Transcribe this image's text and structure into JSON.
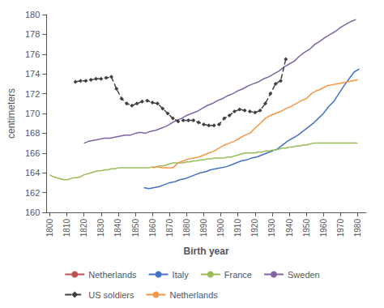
{
  "chart_data": {
    "type": "line",
    "xlabel": "Birth year",
    "ylabel": "centimeters",
    "xlim": [
      1798,
      1985
    ],
    "xticks": [
      1800,
      1810,
      1820,
      1830,
      1840,
      1850,
      1860,
      1870,
      1880,
      1890,
      1900,
      1910,
      1920,
      1930,
      1940,
      1950,
      1960,
      1970,
      1980
    ],
    "ylim": [
      160,
      180
    ],
    "yticks": [
      160,
      162,
      164,
      166,
      168,
      170,
      172,
      174,
      176,
      178,
      180
    ],
    "grid": false,
    "legend": "bottom",
    "series": [
      {
        "name": "Netherlands",
        "color": "#c0504d",
        "line_style": "solid",
        "marker": "none",
        "x": [],
        "values": []
      },
      {
        "name": "Italy",
        "color": "#4472c4",
        "line_style": "solid",
        "marker": "none",
        "x": [
          1855,
          1858,
          1861,
          1864,
          1867,
          1870,
          1873,
          1876,
          1879,
          1882,
          1885,
          1888,
          1891,
          1894,
          1897,
          1900,
          1903,
          1906,
          1909,
          1912,
          1915,
          1918,
          1921,
          1924,
          1927,
          1930,
          1933,
          1936,
          1939,
          1942,
          1945,
          1948,
          1951,
          1954,
          1957,
          1960,
          1963,
          1966,
          1969,
          1972,
          1975,
          1978,
          1981
        ],
        "values": [
          162.5,
          162.4,
          162.5,
          162.6,
          162.8,
          163.0,
          163.1,
          163.3,
          163.4,
          163.6,
          163.8,
          164.0,
          164.1,
          164.3,
          164.4,
          164.5,
          164.6,
          164.8,
          165.0,
          165.2,
          165.3,
          165.5,
          165.6,
          165.8,
          166.0,
          166.2,
          166.4,
          166.8,
          167.2,
          167.5,
          167.8,
          168.2,
          168.6,
          169.0,
          169.5,
          170.0,
          170.7,
          171.2,
          172.0,
          172.8,
          173.5,
          174.2,
          174.5
        ]
      },
      {
        "name": "France",
        "color": "#9bbb59",
        "line_style": "solid",
        "marker": "none",
        "x": [
          1800,
          1802,
          1804,
          1806,
          1808,
          1810,
          1812,
          1814,
          1816,
          1818,
          1820,
          1822,
          1824,
          1826,
          1828,
          1830,
          1832,
          1834,
          1836,
          1838,
          1840,
          1842,
          1844,
          1846,
          1848,
          1850,
          1852,
          1854,
          1856,
          1858,
          1860,
          1862,
          1864,
          1866,
          1868,
          1870,
          1872,
          1874,
          1876,
          1878,
          1880,
          1882,
          1884,
          1886,
          1888,
          1890,
          1892,
          1894,
          1896,
          1898,
          1900,
          1902,
          1904,
          1906,
          1908,
          1910,
          1912,
          1914,
          1916,
          1918,
          1920,
          1922,
          1924,
          1926,
          1928,
          1930,
          1932,
          1934,
          1936,
          1938,
          1940,
          1942,
          1944,
          1946,
          1948,
          1950,
          1952,
          1954,
          1956,
          1958,
          1960,
          1962,
          1964,
          1966,
          1968,
          1970,
          1972,
          1974,
          1976,
          1978,
          1980
        ],
        "values": [
          163.8,
          163.6,
          163.5,
          163.4,
          163.3,
          163.3,
          163.4,
          163.5,
          163.5,
          163.6,
          163.8,
          163.9,
          164.0,
          164.1,
          164.2,
          164.2,
          164.3,
          164.3,
          164.4,
          164.4,
          164.5,
          164.5,
          164.5,
          164.5,
          164.5,
          164.5,
          164.5,
          164.5,
          164.5,
          164.5,
          164.6,
          164.6,
          164.7,
          164.7,
          164.8,
          164.9,
          165.0,
          165.0,
          165.0,
          165.0,
          165.1,
          165.1,
          165.2,
          165.2,
          165.3,
          165.3,
          165.4,
          165.4,
          165.5,
          165.5,
          165.5,
          165.5,
          165.6,
          165.6,
          165.7,
          165.8,
          165.9,
          166.0,
          166.0,
          166.0,
          166.0,
          166.1,
          166.1,
          166.2,
          166.2,
          166.3,
          166.3,
          166.4,
          166.5,
          166.5,
          166.6,
          166.6,
          166.7,
          166.7,
          166.8,
          166.8,
          166.9,
          167.0,
          167.0,
          167.0,
          167.0,
          167.0,
          167.0,
          167.0,
          167.0,
          167.0,
          167.0,
          167.0,
          167.0,
          167.0,
          167.0
        ]
      },
      {
        "name": "Sweden",
        "color": "#8064a2",
        "line_style": "solid",
        "marker": "none",
        "x": [
          1820,
          1823,
          1826,
          1829,
          1832,
          1835,
          1838,
          1841,
          1844,
          1847,
          1850,
          1853,
          1856,
          1859,
          1862,
          1865,
          1868,
          1871,
          1874,
          1877,
          1880,
          1883,
          1886,
          1889,
          1892,
          1895,
          1898,
          1901,
          1904,
          1907,
          1910,
          1913,
          1916,
          1919,
          1922,
          1925,
          1928,
          1931,
          1934,
          1937,
          1940,
          1943,
          1946,
          1949,
          1952,
          1955,
          1958,
          1961,
          1964,
          1967,
          1970,
          1973,
          1976,
          1979
        ],
        "values": [
          167.0,
          167.2,
          167.3,
          167.4,
          167.5,
          167.5,
          167.6,
          167.7,
          167.8,
          167.8,
          168.0,
          168.1,
          168.0,
          168.2,
          168.3,
          168.5,
          168.7,
          169.0,
          169.3,
          169.5,
          169.8,
          170.0,
          170.2,
          170.5,
          170.8,
          171.0,
          171.3,
          171.5,
          171.8,
          172.0,
          172.3,
          172.5,
          172.8,
          173.0,
          173.2,
          173.5,
          173.7,
          174.0,
          174.3,
          174.7,
          175.0,
          175.3,
          175.8,
          176.2,
          176.5,
          177.0,
          177.3,
          177.7,
          178.0,
          178.3,
          178.7,
          179.0,
          179.3,
          179.5
        ]
      },
      {
        "name": "US soldiers",
        "color": "#404040",
        "line_style": "dashed",
        "marker": "diamond",
        "x": [
          1815,
          1818,
          1821,
          1824,
          1827,
          1830,
          1833,
          1836,
          1839,
          1842,
          1845,
          1848,
          1851,
          1854,
          1857,
          1860,
          1863,
          1866,
          1869,
          1872,
          1875,
          1878,
          1881,
          1884,
          1887,
          1890,
          1893,
          1896,
          1899,
          1902,
          1905,
          1908,
          1911,
          1914,
          1917,
          1920,
          1923,
          1926,
          1929,
          1932,
          1935,
          1938
        ],
        "values": [
          173.2,
          173.3,
          173.3,
          173.4,
          173.5,
          173.5,
          173.6,
          173.7,
          172.5,
          171.5,
          171.0,
          170.8,
          171.0,
          171.2,
          171.3,
          171.1,
          171.0,
          170.5,
          170.0,
          169.5,
          169.2,
          169.3,
          169.3,
          169.3,
          169.1,
          168.9,
          168.8,
          168.8,
          168.9,
          169.5,
          169.8,
          170.2,
          170.4,
          170.3,
          170.2,
          170.1,
          170.3,
          171.0,
          172.0,
          173.0,
          173.3,
          175.5
        ]
      },
      {
        "name": "Netherlands",
        "color": "#f79646",
        "line_style": "solid",
        "marker": "none",
        "x": [
          1860,
          1863,
          1866,
          1869,
          1872,
          1875,
          1878,
          1881,
          1884,
          1887,
          1890,
          1893,
          1896,
          1899,
          1902,
          1905,
          1908,
          1911,
          1914,
          1917,
          1920,
          1923,
          1926,
          1929,
          1932,
          1935,
          1938,
          1941,
          1944,
          1947,
          1950,
          1953,
          1956,
          1959,
          1962,
          1965,
          1968,
          1971,
          1974,
          1977,
          1980
        ],
        "values": [
          164.5,
          164.6,
          164.5,
          164.5,
          164.5,
          165.0,
          165.2,
          165.4,
          165.5,
          165.6,
          165.8,
          166.0,
          166.2,
          166.5,
          166.8,
          167.0,
          167.2,
          167.5,
          167.8,
          168.0,
          168.5,
          169.0,
          169.5,
          169.8,
          170.0,
          170.2,
          170.5,
          170.7,
          171.0,
          171.3,
          171.5,
          172.0,
          172.3,
          172.5,
          172.8,
          172.9,
          173.0,
          173.1,
          173.2,
          173.3,
          173.4
        ]
      }
    ]
  }
}
